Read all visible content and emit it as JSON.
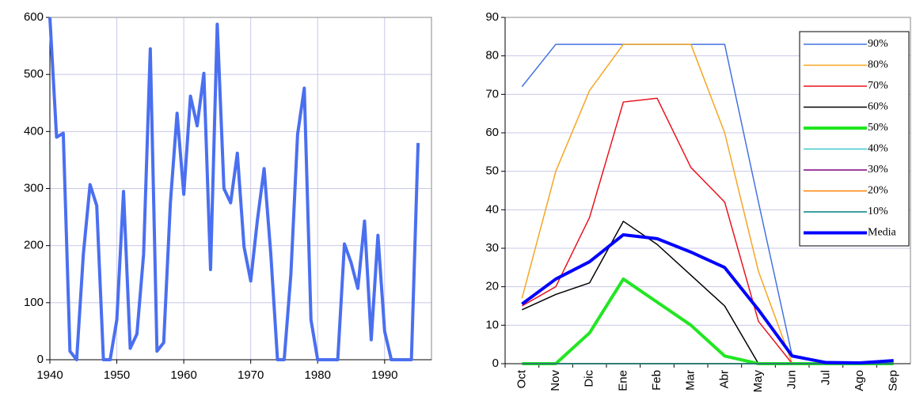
{
  "chart_data": [
    {
      "type": "line",
      "xlim": [
        1940,
        1997
      ],
      "xticks": [
        1940,
        1950,
        1960,
        1970,
        1980,
        1990
      ],
      "ylim": [
        0,
        600
      ],
      "yticks": [
        0,
        100,
        200,
        300,
        400,
        500,
        600
      ],
      "grid": true,
      "x": [
        1940,
        1941,
        1942,
        1943,
        1944,
        1945,
        1946,
        1947,
        1948,
        1949,
        1950,
        1951,
        1952,
        1953,
        1954,
        1955,
        1956,
        1957,
        1958,
        1959,
        1960,
        1961,
        1962,
        1963,
        1964,
        1965,
        1966,
        1967,
        1968,
        1969,
        1970,
        1971,
        1972,
        1973,
        1974,
        1975,
        1976,
        1977,
        1978,
        1979,
        1980,
        1981,
        1982,
        1983,
        1984,
        1985,
        1986,
        1987,
        1988,
        1989,
        1990,
        1991,
        1992,
        1993,
        1994,
        1995
      ],
      "series": [
        {
          "color": "#4a6ff0",
          "linewidth": 4,
          "values": [
            600,
            390,
            397,
            15,
            0,
            185,
            307,
            270,
            0,
            0,
            70,
            295,
            20,
            45,
            185,
            545,
            15,
            30,
            275,
            432,
            290,
            462,
            410,
            502,
            158,
            588,
            300,
            275,
            362,
            198,
            138,
            245,
            335,
            185,
            0,
            0,
            150,
            395,
            476,
            70,
            0,
            0,
            0,
            0,
            203,
            170,
            125,
            243,
            35,
            218,
            50,
            0,
            0,
            0,
            0,
            380
          ]
        }
      ]
    },
    {
      "type": "line",
      "categories": [
        "Oct",
        "Nov",
        "Dic",
        "Ene",
        "Feb",
        "Mar",
        "Abr",
        "May",
        "Jun",
        "Jul",
        "Ago",
        "Sep"
      ],
      "ylim": [
        0,
        90
      ],
      "yticks": [
        0,
        10,
        20,
        30,
        40,
        50,
        60,
        70,
        80,
        90
      ],
      "grid": true,
      "legend": "upper right",
      "series": [
        {
          "name": "90%",
          "color": "#4472e0",
          "linewidth": 1.5,
          "values": [
            72,
            83,
            83,
            83,
            83,
            83,
            83,
            42,
            2,
            0,
            0,
            1
          ]
        },
        {
          "name": "80%",
          "color": "#f5a623",
          "linewidth": 1.5,
          "values": [
            17,
            50,
            71,
            83,
            83,
            83,
            60,
            24,
            0,
            0,
            0,
            0
          ]
        },
        {
          "name": "70%",
          "color": "#e8141e",
          "linewidth": 1.5,
          "values": [
            15,
            20,
            38,
            68,
            69,
            51,
            42,
            11,
            0,
            0,
            0,
            0
          ]
        },
        {
          "name": "60%",
          "color": "#000000",
          "linewidth": 1.5,
          "values": [
            14,
            18,
            21,
            37,
            31,
            23,
            15,
            0,
            0,
            0,
            0,
            0
          ]
        },
        {
          "name": "50%",
          "color": "#22e622",
          "linewidth": 4,
          "values": [
            0,
            0,
            8,
            22,
            16,
            10,
            2,
            0,
            0,
            0,
            0,
            0
          ]
        },
        {
          "name": "40%",
          "color": "#40c8c8",
          "linewidth": 1.5,
          "values": [
            0,
            0,
            0,
            0,
            0,
            0,
            0,
            0,
            0,
            0,
            0,
            0
          ]
        },
        {
          "name": "30%",
          "color": "#800080",
          "linewidth": 1.5,
          "values": [
            0,
            0,
            0,
            0,
            0,
            0,
            0,
            0,
            0,
            0,
            0,
            0
          ]
        },
        {
          "name": "20%",
          "color": "#ff8000",
          "linewidth": 1.5,
          "values": [
            0,
            0,
            0,
            0,
            0,
            0,
            0,
            0,
            0,
            0,
            0,
            0
          ]
        },
        {
          "name": "10%",
          "color": "#008080",
          "linewidth": 1.5,
          "values": [
            0,
            0,
            0,
            0,
            0,
            0,
            0,
            0,
            0,
            0,
            0,
            0
          ]
        },
        {
          "name": "Media",
          "color": "#0000ff",
          "linewidth": 4,
          "values": [
            15.5,
            22,
            26.5,
            33.5,
            32.5,
            29,
            25,
            14,
            2,
            0.3,
            0.2,
            0.8
          ]
        }
      ]
    }
  ]
}
